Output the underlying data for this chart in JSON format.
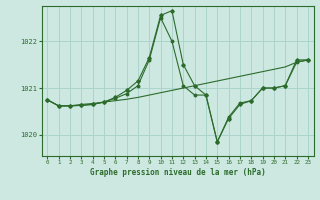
{
  "title": "Graphe pression niveau de la mer (hPa)",
  "background_color": "#cce8e0",
  "grid_color": "#aad4cc",
  "line_color": "#2d6b2d",
  "x_ticks": [
    0,
    1,
    2,
    3,
    4,
    5,
    6,
    7,
    8,
    9,
    10,
    11,
    12,
    13,
    14,
    15,
    16,
    17,
    18,
    19,
    20,
    21,
    22,
    23
  ],
  "ylim": [
    1019.55,
    1022.75
  ],
  "yticks": [
    1020,
    1021,
    1022
  ],
  "series_flat": {
    "x": [
      0,
      1,
      2,
      3,
      4,
      5,
      6,
      7,
      8,
      9,
      10,
      11,
      12,
      13,
      14,
      15,
      16,
      17,
      18,
      19,
      20,
      21,
      22,
      23
    ],
    "y": [
      1020.75,
      1020.62,
      1020.62,
      1020.65,
      1020.67,
      1020.7,
      1020.73,
      1020.76,
      1020.8,
      1020.85,
      1020.9,
      1020.95,
      1021.0,
      1021.05,
      1021.1,
      1021.15,
      1021.2,
      1021.25,
      1021.3,
      1021.35,
      1021.4,
      1021.45,
      1021.55,
      1021.6
    ]
  },
  "series_spike1": {
    "x": [
      0,
      1,
      2,
      3,
      4,
      5,
      6,
      7,
      8,
      9,
      10,
      11,
      12,
      13,
      14,
      15,
      16,
      17,
      18,
      19,
      20,
      21,
      22,
      23
    ],
    "y": [
      1020.75,
      1020.62,
      1020.62,
      1020.63,
      1020.65,
      1020.7,
      1020.8,
      1020.95,
      1021.15,
      1021.65,
      1022.55,
      1022.65,
      1021.5,
      1021.05,
      1020.85,
      1019.85,
      1020.35,
      1020.65,
      1020.73,
      1021.0,
      1021.0,
      1021.05,
      1021.6,
      1021.6
    ]
  },
  "series_spike2": {
    "x": [
      0,
      1,
      2,
      3,
      4,
      5,
      6,
      7,
      8,
      9,
      10,
      11,
      12,
      13,
      14,
      15,
      16,
      17,
      18,
      19,
      20,
      21,
      22,
      23
    ],
    "y": [
      1020.75,
      1020.62,
      1020.62,
      1020.63,
      1020.65,
      1020.7,
      1020.78,
      1020.88,
      1021.05,
      1021.6,
      1022.5,
      1022.0,
      1021.05,
      1020.85,
      1020.85,
      1019.85,
      1020.38,
      1020.68,
      1020.73,
      1021.0,
      1021.0,
      1021.05,
      1021.55,
      1021.6
    ]
  }
}
